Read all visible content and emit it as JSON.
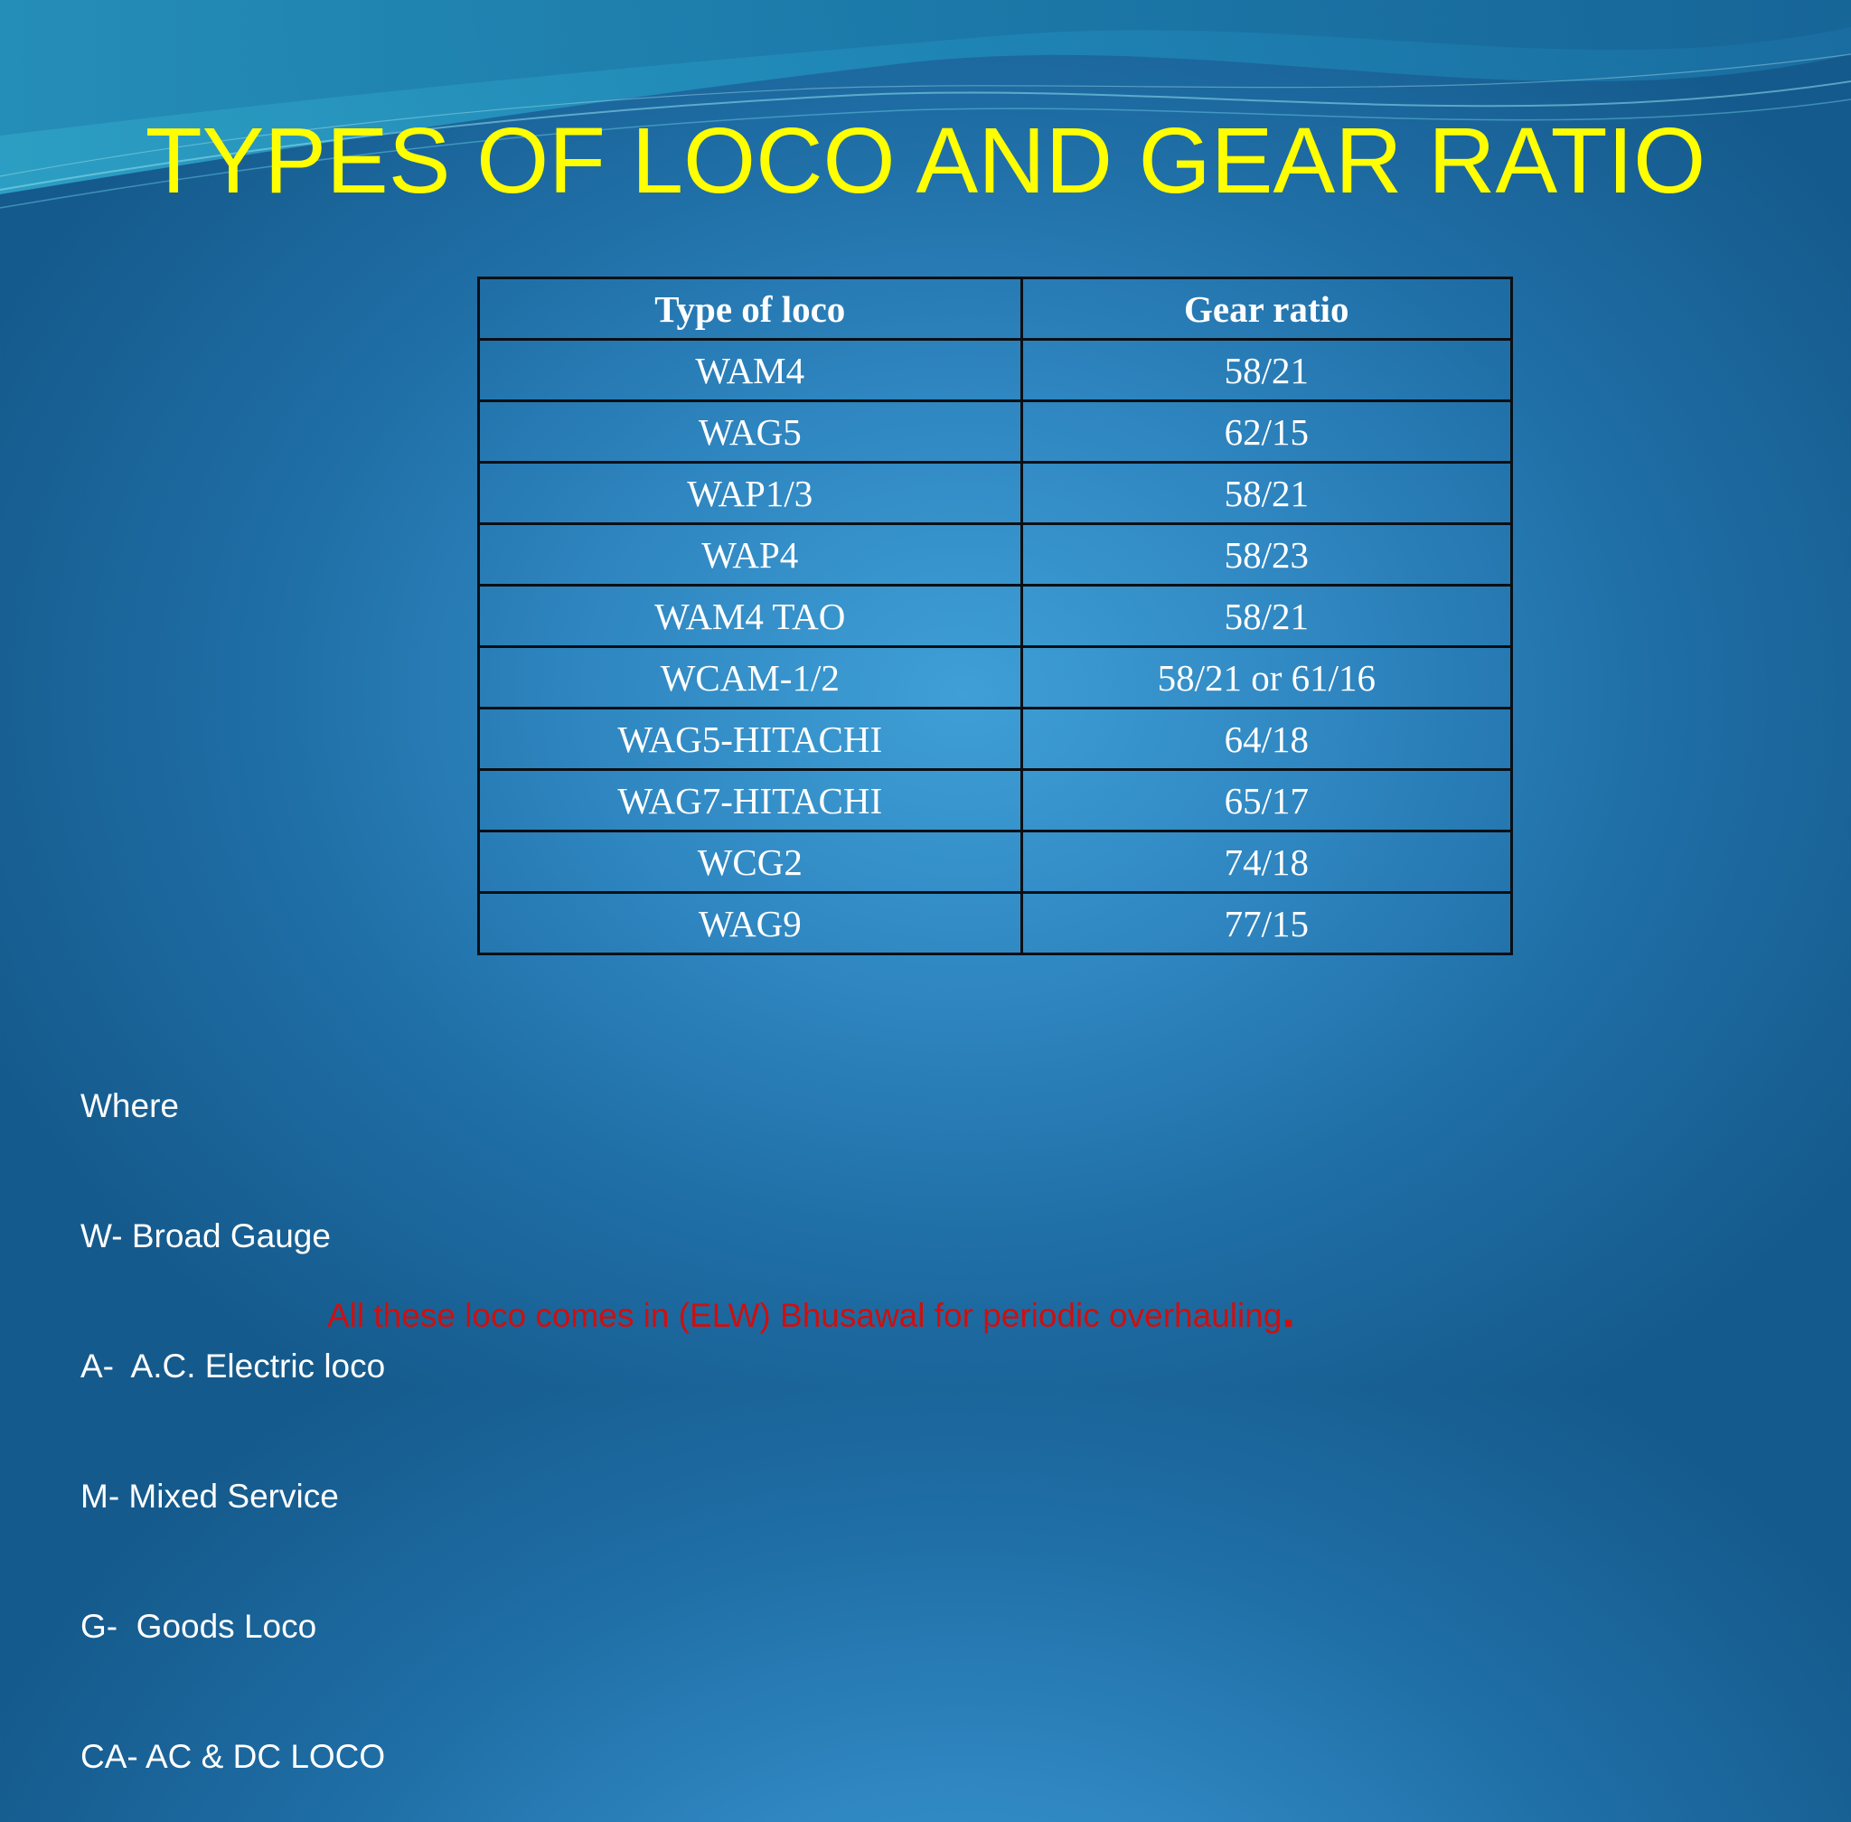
{
  "title": "TYPES OF LOCO AND GEAR RATIO",
  "table": {
    "headers": [
      "Type of loco",
      "Gear ratio"
    ],
    "rows": [
      [
        "WAM4",
        "58/21"
      ],
      [
        "WAG5",
        "62/15"
      ],
      [
        "WAP1/3",
        "58/21"
      ],
      [
        "WAP4",
        "58/23"
      ],
      [
        "WAM4 TAO",
        "58/21"
      ],
      [
        "WCAM-1/2",
        "58/21 or 61/16"
      ],
      [
        "WAG5-HITACHI",
        "64/18"
      ],
      [
        "WAG7-HITACHI",
        "65/17"
      ],
      [
        "WCG2",
        "74/18"
      ],
      [
        "WAG9",
        "77/15"
      ]
    ]
  },
  "legend": [
    "Where",
    "W- Broad Gauge",
    "A-  A.C. Electric loco",
    "M- Mixed Service",
    "G-  Goods Loco",
    "CA- AC & DC LOCO"
  ],
  "footer": {
    "text": "All these loco comes in (ELW) Bhusawal for periodic overhauling",
    "period": "."
  },
  "colors": {
    "title": "#ffff00",
    "footer": "#cc1010",
    "text": "#ffffff",
    "background": "#2f86c0"
  }
}
